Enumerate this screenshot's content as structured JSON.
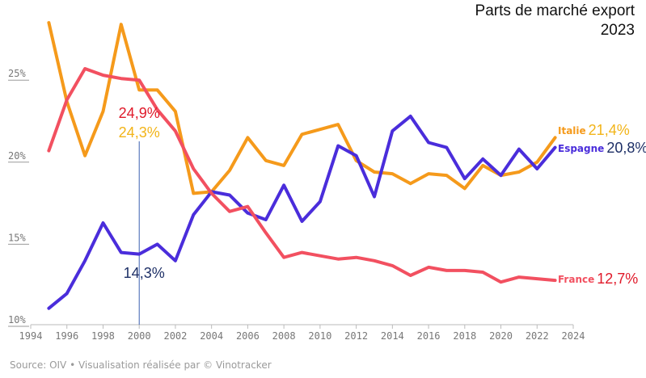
{
  "title_line1": "Parts de marché export",
  "title_line2": "2023",
  "source": "Source: OIV • Visualisation réalisée par © Vinotracker",
  "chart_data": {
    "type": "line",
    "xlim": [
      1994,
      2024
    ],
    "ylim": [
      10,
      28.8
    ],
    "x_ticks": [
      "1994",
      "1996",
      "1998",
      "2000",
      "2002",
      "2004",
      "2006",
      "2008",
      "2010",
      "2012",
      "2014",
      "2016",
      "2018",
      "2020",
      "2022",
      "2024"
    ],
    "y_ticks": [
      {
        "value": 10,
        "label": "10%"
      },
      {
        "value": 15,
        "label": "15%"
      },
      {
        "value": 20,
        "label": "20%"
      },
      {
        "value": 25,
        "label": "25%"
      }
    ],
    "grid": false,
    "x": [
      1995,
      1996,
      1997,
      1998,
      1999,
      2000,
      2001,
      2002,
      2003,
      2004,
      2005,
      2006,
      2007,
      2008,
      2009,
      2010,
      2011,
      2012,
      2013,
      2014,
      2015,
      2016,
      2017,
      2018,
      2019,
      2020,
      2021,
      2022,
      2023
    ],
    "series": [
      {
        "name": "Italie",
        "color": "#f59a1b",
        "values": [
          28.4,
          23.6,
          20.3,
          23.0,
          28.3,
          24.3,
          24.3,
          23.0,
          18.0,
          18.1,
          19.4,
          21.4,
          20.0,
          19.7,
          21.6,
          21.9,
          22.2,
          20.0,
          19.3,
          19.2,
          18.6,
          19.2,
          19.1,
          18.3,
          19.7,
          19.1,
          19.3,
          19.9,
          21.4
        ],
        "label_value": "21,4%"
      },
      {
        "name": "Espagne",
        "color": "#4a2ddb",
        "values": [
          11.0,
          11.9,
          13.9,
          16.2,
          14.4,
          14.3,
          14.9,
          13.9,
          16.7,
          18.1,
          17.9,
          16.8,
          16.4,
          18.5,
          16.3,
          17.5,
          20.9,
          20.3,
          17.8,
          21.8,
          22.7,
          21.1,
          20.8,
          18.9,
          20.1,
          19.1,
          20.7,
          19.5,
          20.8
        ],
        "label_value": "20,8%"
      },
      {
        "name": "France",
        "color": "#f25060",
        "values": [
          20.6,
          23.7,
          25.6,
          25.2,
          25.0,
          24.9,
          23.1,
          null,
          null,
          null,
          null,
          null,
          null,
          null,
          null,
          null,
          null,
          null,
          null,
          null,
          null,
          null,
          null,
          null,
          null,
          null,
          null,
          null,
          null
        ],
        "values_tail": {
          "x": [
            2001,
            2002,
            2003,
            2004,
            2005,
            2006,
            2007,
            2008,
            2009,
            2010,
            2011,
            2012,
            2013,
            2014,
            2015,
            2016,
            2017,
            2018,
            2019,
            2020,
            2021,
            2022,
            2023
          ],
          "y": [
            23.1,
            21.8,
            19.5,
            18.0,
            16.9,
            17.2,
            15.6,
            14.1,
            14.4,
            14.2,
            14.0,
            14.1,
            13.9,
            13.6,
            13.0,
            13.5,
            13.3,
            13.3,
            13.2,
            12.6,
            12.9,
            12.8,
            12.7
          ]
        },
        "label_value": "12,7%"
      }
    ],
    "annotation": {
      "x": 2000,
      "france_value": "24,9%",
      "italie_value": "24,3%",
      "espagne_value": "14,3%",
      "line_color": "#3a5fb0",
      "france_color": "#e01a2a",
      "italie_color": "#f2b418",
      "espagne_color": "#1d2f66"
    }
  }
}
